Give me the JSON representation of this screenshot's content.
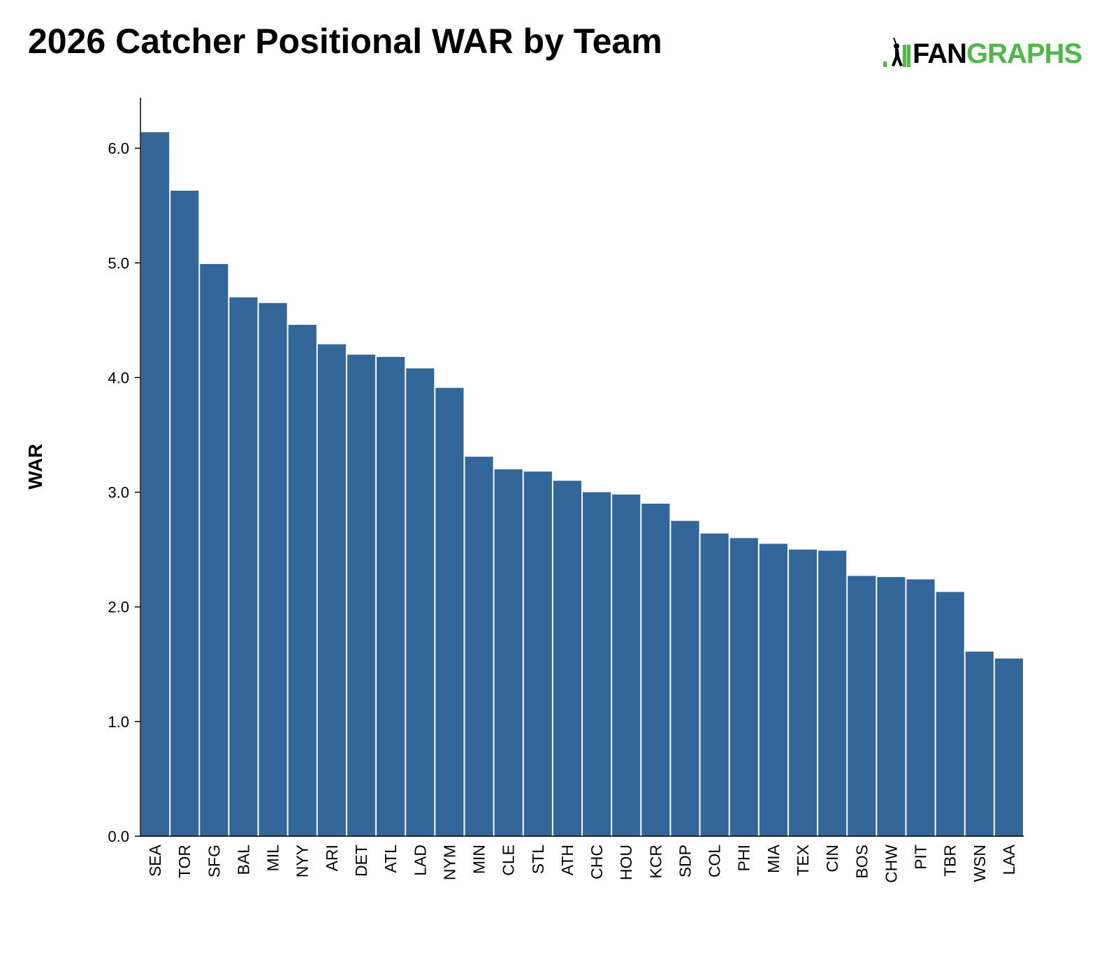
{
  "title": "2026 Catcher Positional WAR by Team",
  "logo": {
    "text_dark": "FAN",
    "text_green": "GRAPHS",
    "icon": "fangraphs-batter-icon",
    "green": "#4fb848"
  },
  "colors": {
    "bar": "#336699",
    "axis": "#000000",
    "text": "#000000"
  },
  "chart_data": {
    "type": "bar",
    "title": "2026 Catcher Positional WAR by Team",
    "xlabel": "",
    "ylabel": "WAR",
    "ylim": [
      0,
      6.44
    ],
    "yticks": [
      "0.0",
      "1.0",
      "2.0",
      "3.0",
      "4.0",
      "5.0",
      "6.0"
    ],
    "grid": false,
    "legend": "none",
    "categories": [
      "SEA",
      "TOR",
      "SFG",
      "BAL",
      "MIL",
      "NYY",
      "ARI",
      "DET",
      "ATL",
      "LAD",
      "NYM",
      "MIN",
      "CLE",
      "STL",
      "ATH",
      "CHC",
      "HOU",
      "KCR",
      "SDP",
      "COL",
      "PHI",
      "MIA",
      "TEX",
      "CIN",
      "BOS",
      "CHW",
      "PIT",
      "TBR",
      "WSN",
      "LAA"
    ],
    "values": [
      6.14,
      5.63,
      4.99,
      4.7,
      4.65,
      4.46,
      4.29,
      4.2,
      4.18,
      4.08,
      3.91,
      3.31,
      3.2,
      3.18,
      3.1,
      3.0,
      2.98,
      2.9,
      2.75,
      2.64,
      2.6,
      2.55,
      2.5,
      2.49,
      2.27,
      2.26,
      2.24,
      2.13,
      1.61,
      1.55
    ]
  }
}
